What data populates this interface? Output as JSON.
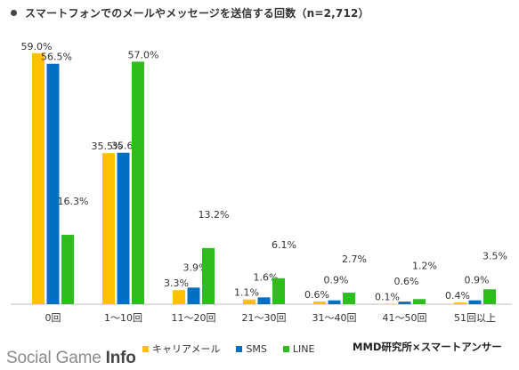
{
  "title": "スマートフォンでのメールやメッセージを送信する回数（n=2,712）",
  "source": "MMD研究所×スマートアンサー",
  "brand": {
    "text": "Social Game ",
    "strong": "Info"
  },
  "colors": {
    "キャリアメール": "#FFC000",
    "SMS": "#0070C0",
    "LINE": "#2DBE1E",
    "baseline": "#bfbfbf"
  },
  "chart_data": {
    "type": "bar",
    "categories": [
      "0回",
      "1〜10回",
      "11〜20回",
      "21〜30回",
      "31〜40回",
      "41〜50回",
      "51回以上"
    ],
    "series": [
      {
        "name": "キャリアメール",
        "values": [
          59.0,
          35.5,
          3.3,
          1.1,
          0.6,
          0.1,
          0.4
        ],
        "labels": [
          "59.0%",
          "35.5%",
          "3.3%",
          "1.1%",
          "0.6%",
          "0.1%",
          "0.4%"
        ]
      },
      {
        "name": "SMS",
        "values": [
          56.5,
          35.6,
          3.9,
          1.6,
          0.9,
          0.6,
          0.9
        ],
        "labels": [
          "56.5%",
          "35.6%",
          "3.9%",
          "1.6%",
          "0.9%",
          "0.6%",
          "0.9%"
        ]
      },
      {
        "name": "LINE",
        "values": [
          16.3,
          57.0,
          13.2,
          6.1,
          2.7,
          1.2,
          3.5
        ],
        "labels": [
          "16.3%",
          "57.0%",
          "13.2%",
          "6.1%",
          "2.7%",
          "1.2%",
          "3.5%"
        ]
      }
    ],
    "ylim": [
      0,
      60
    ],
    "grid": false,
    "legend": "bottom"
  }
}
